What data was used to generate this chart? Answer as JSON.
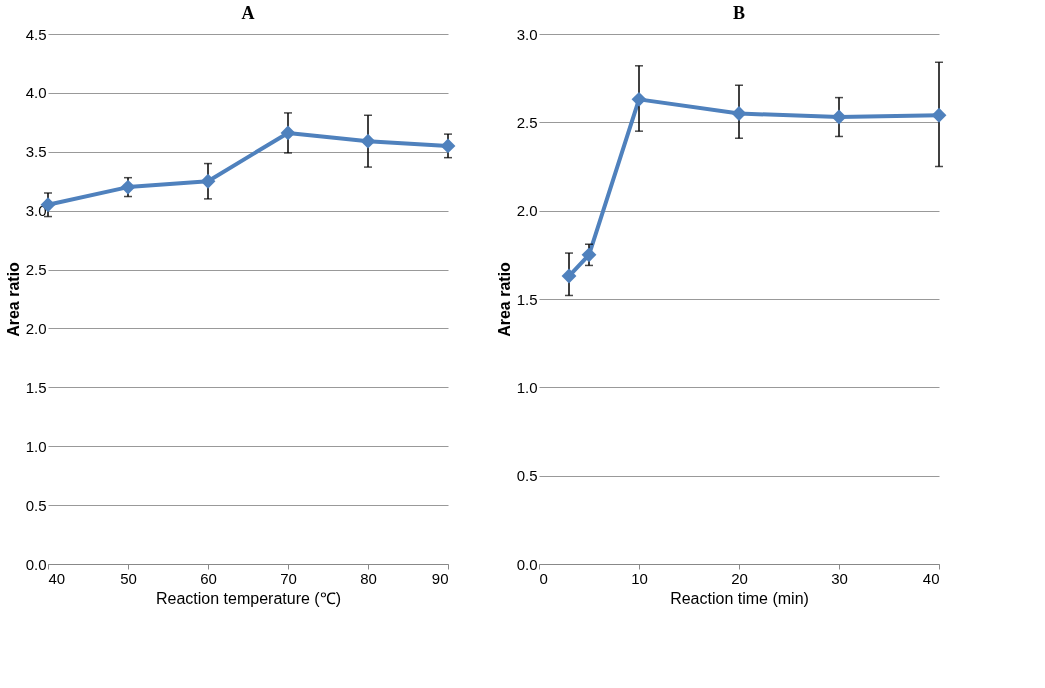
{
  "chart_data": [
    {
      "type": "line",
      "title": "A",
      "xlabel": "Reaction temperature (℃)",
      "ylabel": "Area ratio",
      "x": [
        40,
        50,
        60,
        70,
        80,
        90
      ],
      "series": [
        {
          "color": "#4f81bd",
          "values": [
            3.05,
            3.2,
            3.25,
            3.66,
            3.59,
            3.55
          ],
          "errors": [
            0.1,
            0.08,
            0.15,
            0.17,
            0.22,
            0.1
          ]
        }
      ],
      "xlim": [
        40,
        90
      ],
      "xticks": [
        40,
        50,
        60,
        70,
        80,
        90
      ],
      "ylim": [
        0,
        4.5
      ],
      "yticks": [
        {
          "value": 0,
          "label": "0.0"
        },
        0.5,
        {
          "value": 1,
          "label": "1.0"
        },
        1.5,
        {
          "value": 2,
          "label": "2.0"
        },
        2.5,
        {
          "value": 3,
          "label": "3.0"
        },
        3.5,
        {
          "value": 4,
          "label": "4.0"
        },
        4.5
      ],
      "grid": "y",
      "marker": "diamond",
      "line_style": "solid"
    },
    {
      "type": "line",
      "title": "B",
      "xlabel": "Reaction time (min)",
      "ylabel": "Area ratio",
      "x": [
        3,
        5,
        10,
        20,
        30,
        40
      ],
      "series": [
        {
          "color": "#4f81bd",
          "values": [
            1.63,
            1.75,
            2.63,
            2.55,
            2.53,
            2.54
          ],
          "errors": [
            [
              1.52,
              1.76
            ],
            [
              1.69,
              1.81
            ],
            [
              2.45,
              2.82
            ],
            [
              2.41,
              2.71
            ],
            [
              2.42,
              2.64
            ],
            [
              2.25,
              2.84
            ]
          ]
        }
      ],
      "xlim": [
        0,
        40
      ],
      "xticks": [
        0,
        10,
        20,
        30,
        40
      ],
      "ylim": [
        0,
        3
      ],
      "yticks": [
        {
          "value": 0,
          "label": "0.0"
        },
        0.5,
        {
          "value": 1,
          "label": "1.0"
        },
        1.5,
        {
          "value": 2,
          "label": "2.0"
        },
        2.5,
        {
          "value": 3,
          "label": "3.0"
        }
      ],
      "grid": "y",
      "marker": "diamond",
      "line_style": "solid"
    }
  ]
}
